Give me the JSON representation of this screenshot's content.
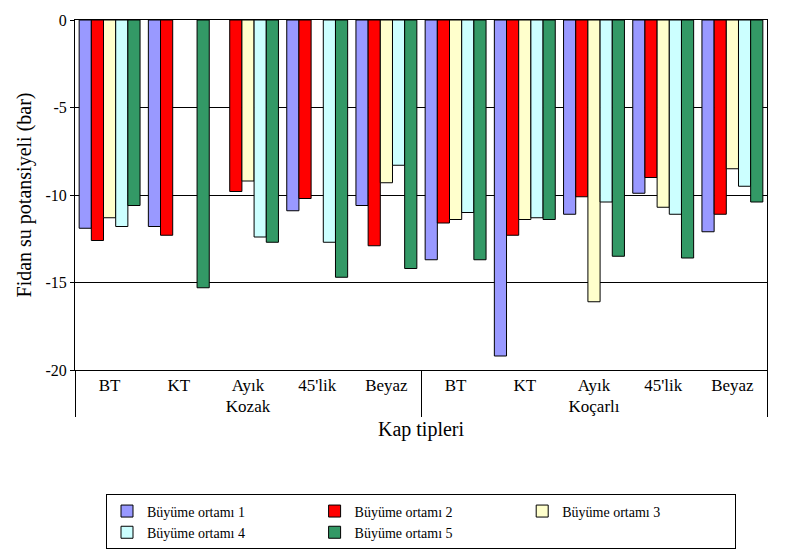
{
  "chart_data": {
    "type": "bar",
    "x_label": "Kap tipleri",
    "y_label": "Fidan su potansiyeli (bar)",
    "groups": [
      "Kozak",
      "Kozak",
      "Kozak",
      "Kozak",
      "Kozak",
      "Koçarlı",
      "Koçarlı",
      "Koçarlı",
      "Koçarlı",
      "Koçarlı"
    ],
    "categories": [
      "BT",
      "KT",
      "Ayık",
      "45'lik",
      "Beyaz",
      "BT",
      "KT",
      "Ayık",
      "45'lik",
      "Beyaz"
    ],
    "series": [
      {
        "name": "Büyüme ortamı 1",
        "color": "#9999ff",
        "values": [
          -11.9,
          -11.8,
          null,
          -10.9,
          -10.6,
          -13.7,
          -19.2,
          -11.1,
          -9.9,
          -12.1
        ]
      },
      {
        "name": "Büyüme ortamı 2",
        "color": "#ff0000",
        "values": [
          -12.6,
          -12.3,
          -9.8,
          -10.2,
          -12.9,
          -11.6,
          -12.3,
          -10.1,
          -9.0,
          -11.1
        ]
      },
      {
        "name": "Büyüme ortamı 3",
        "color": "#ffffcc",
        "values": [
          -11.3,
          null,
          -9.2,
          null,
          -9.3,
          -11.4,
          -11.4,
          -16.1,
          -10.7,
          -8.5
        ]
      },
      {
        "name": "Büyüme ortamı 4",
        "color": "#ccffff",
        "values": [
          -11.8,
          null,
          -12.4,
          -12.7,
          -8.3,
          -11.0,
          -11.3,
          -10.4,
          -11.1,
          -9.5
        ]
      },
      {
        "name": "Büyüme ortamı 5",
        "color": "#339966",
        "values": [
          -10.6,
          -15.3,
          -12.7,
          -14.7,
          -14.2,
          -13.7,
          -11.4,
          -13.5,
          -13.6,
          -10.4
        ]
      }
    ],
    "ylim": [
      -20,
      0
    ],
    "yticks": [
      -20,
      -15,
      -10,
      -5,
      0
    ],
    "grid": true,
    "legend": "bottom"
  }
}
